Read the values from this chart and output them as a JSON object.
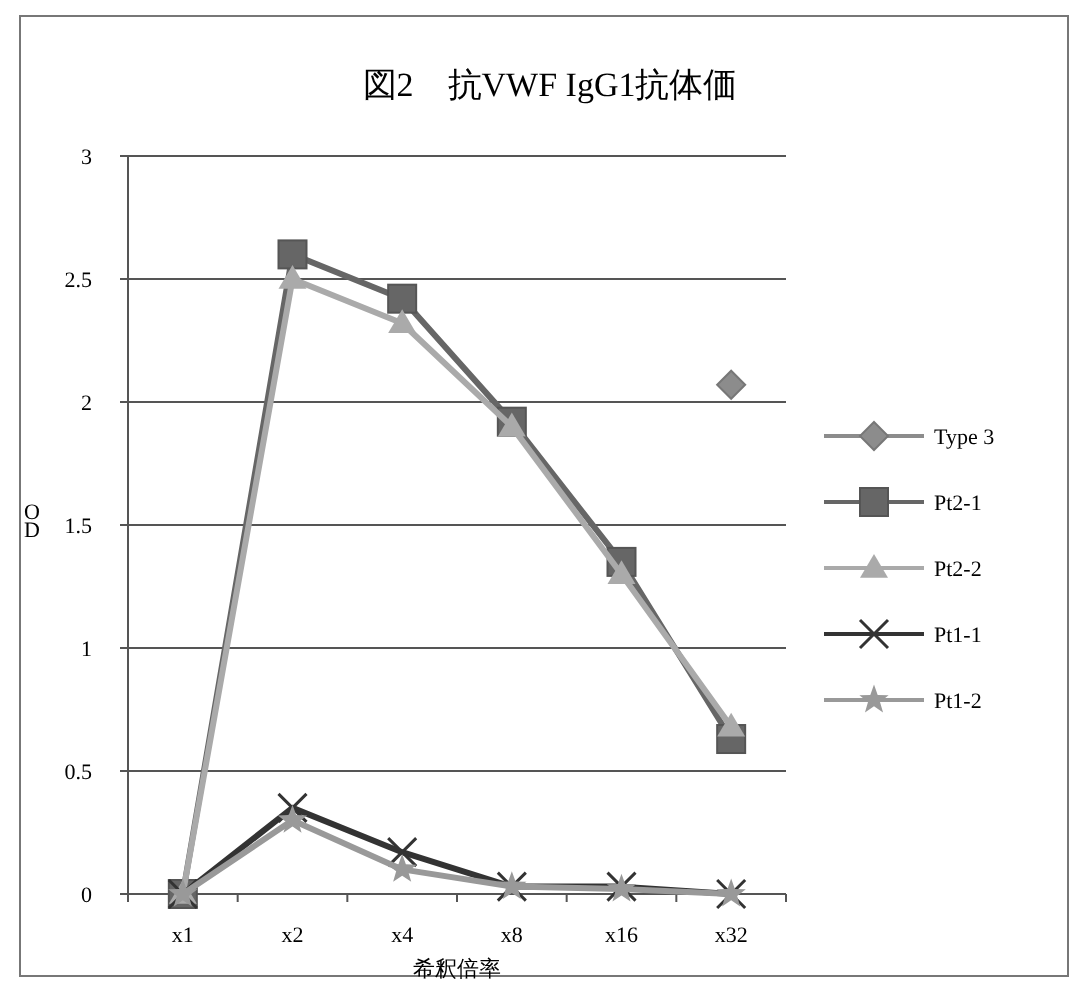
{
  "chart_data": {
    "type": "line",
    "title": "図2　抗VWF IgG1抗体価",
    "xlabel": "希釈倍率",
    "ylabel": "OD",
    "categories": [
      "x1",
      "x2",
      "x4",
      "x8",
      "x16",
      "x32"
    ],
    "ylim": [
      0,
      3
    ],
    "yticks": [
      0,
      0.5,
      1,
      1.5,
      2,
      2.5,
      3
    ],
    "grid": "y",
    "legend": "right",
    "series": [
      {
        "name": "Type 3",
        "color": "#8c8c8c",
        "marker": "diamond",
        "values": [
          null,
          null,
          null,
          null,
          null,
          2.07
        ]
      },
      {
        "name": "Pt2-1",
        "color": "#666666",
        "marker": "square",
        "values": [
          0,
          2.6,
          2.42,
          1.92,
          1.35,
          0.63
        ]
      },
      {
        "name": "Pt2-2",
        "color": "#aaaaaa",
        "marker": "triangle",
        "values": [
          0,
          2.5,
          2.32,
          1.9,
          1.3,
          0.68
        ]
      },
      {
        "name": "Pt1-1",
        "color": "#333333",
        "marker": "cross",
        "values": [
          0,
          0.35,
          0.17,
          0.03,
          0.03,
          0
        ]
      },
      {
        "name": "Pt1-2",
        "color": "#999999",
        "marker": "star",
        "values": [
          0,
          0.3,
          0.1,
          0.03,
          0.02,
          0
        ]
      }
    ]
  }
}
